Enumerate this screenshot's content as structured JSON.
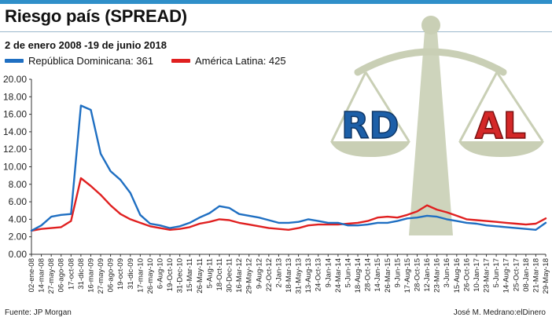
{
  "header": {
    "title": "Riesgo país (SPREAD)",
    "subtitle": "2 de enero 2008 -19 de junio 2018",
    "accent": "#2f8fc9"
  },
  "footer": {
    "source": "Fuente: JP Morgan",
    "credit": "José M. Medrano:elDinero"
  },
  "illustration": {
    "left_pan": "RD",
    "right_pan": "AL",
    "color_rd": "#1c5fa8",
    "color_al": "#d42828"
  },
  "chart_data": {
    "type": "line",
    "title": "Riesgo país (SPREAD)",
    "subtitle": "2 de enero 2008 -19 de junio 2018",
    "ylim": [
      0,
      20
    ],
    "yticks": [
      "0.00",
      "2.00",
      "4.00",
      "6.00",
      "8.00",
      "10.00",
      "12.00",
      "14.00",
      "16.00",
      "18.00",
      "20.00"
    ],
    "grid": false,
    "legend_position": "top-left",
    "x_tick_labels": [
      "02-ene-08",
      "14-mar-08",
      "27-may-08",
      "06-ago-08",
      "17-oct-08",
      "31-dic-08",
      "16-mar-09",
      "27-may-09",
      "06-ago-09",
      "19-oct-09",
      "31-dic-09",
      "17-mar-10",
      "26-may-10",
      "6-Aug-10",
      "19-Oct-10",
      "31-Dec-10",
      "15-Mar-11",
      "26-May-11",
      "5-Aug-11",
      "18-Oct-11",
      "30-Dec-11",
      "16-Mar-12",
      "29-May-12",
      "9-Aug-12",
      "22-Oct-12",
      "2-Jan-13",
      "18-Mar-13",
      "31-May-13",
      "13-Aug-13",
      "24-Oct-13",
      "9-Jan-14",
      "24-Mar-14",
      "5-Jun-14",
      "18-Aug-14",
      "28-Oct-14",
      "14-Jan-15",
      "26-Mar-15",
      "9-Jun-15",
      "17-Aug-15",
      "28-Oct-15",
      "12-Jan-16",
      "23-Mar-16",
      "3-Jun-16",
      "15-Aug-16",
      "26-Oct-16",
      "10-Jan-17",
      "23-Mar-17",
      "5-Jun-17",
      "14-Aug-17",
      "25-Oct-17",
      "08-Jan-18",
      "21-Mar-18",
      "29-May-18"
    ],
    "series": [
      {
        "name": "República Dominicana: 361",
        "color": "#1f6fc2",
        "values": [
          2.7,
          3.3,
          4.3,
          4.5,
          4.6,
          17.0,
          16.5,
          11.5,
          9.5,
          8.5,
          7.0,
          4.5,
          3.5,
          3.3,
          3.0,
          3.2,
          3.6,
          4.2,
          4.7,
          5.5,
          5.3,
          4.6,
          4.4,
          4.2,
          3.9,
          3.6,
          3.6,
          3.7,
          4.0,
          3.8,
          3.6,
          3.6,
          3.3,
          3.3,
          3.4,
          3.6,
          3.6,
          3.8,
          4.1,
          4.2,
          4.4,
          4.3,
          4.0,
          3.8,
          3.6,
          3.5,
          3.3,
          3.2,
          3.1,
          3.0,
          2.9,
          2.8,
          3.6
        ]
      },
      {
        "name": "América Latina: 425",
        "color": "#e02020",
        "values": [
          2.7,
          2.9,
          3.0,
          3.1,
          3.8,
          8.7,
          7.8,
          6.8,
          5.6,
          4.6,
          4.0,
          3.6,
          3.2,
          3.0,
          2.8,
          2.9,
          3.1,
          3.5,
          3.7,
          4.0,
          3.9,
          3.6,
          3.4,
          3.2,
          3.0,
          2.9,
          2.8,
          3.0,
          3.3,
          3.4,
          3.4,
          3.4,
          3.5,
          3.6,
          3.8,
          4.2,
          4.3,
          4.2,
          4.5,
          4.9,
          5.6,
          5.1,
          4.8,
          4.4,
          4.0,
          3.9,
          3.8,
          3.7,
          3.6,
          3.5,
          3.4,
          3.5,
          4.1
        ]
      }
    ]
  }
}
